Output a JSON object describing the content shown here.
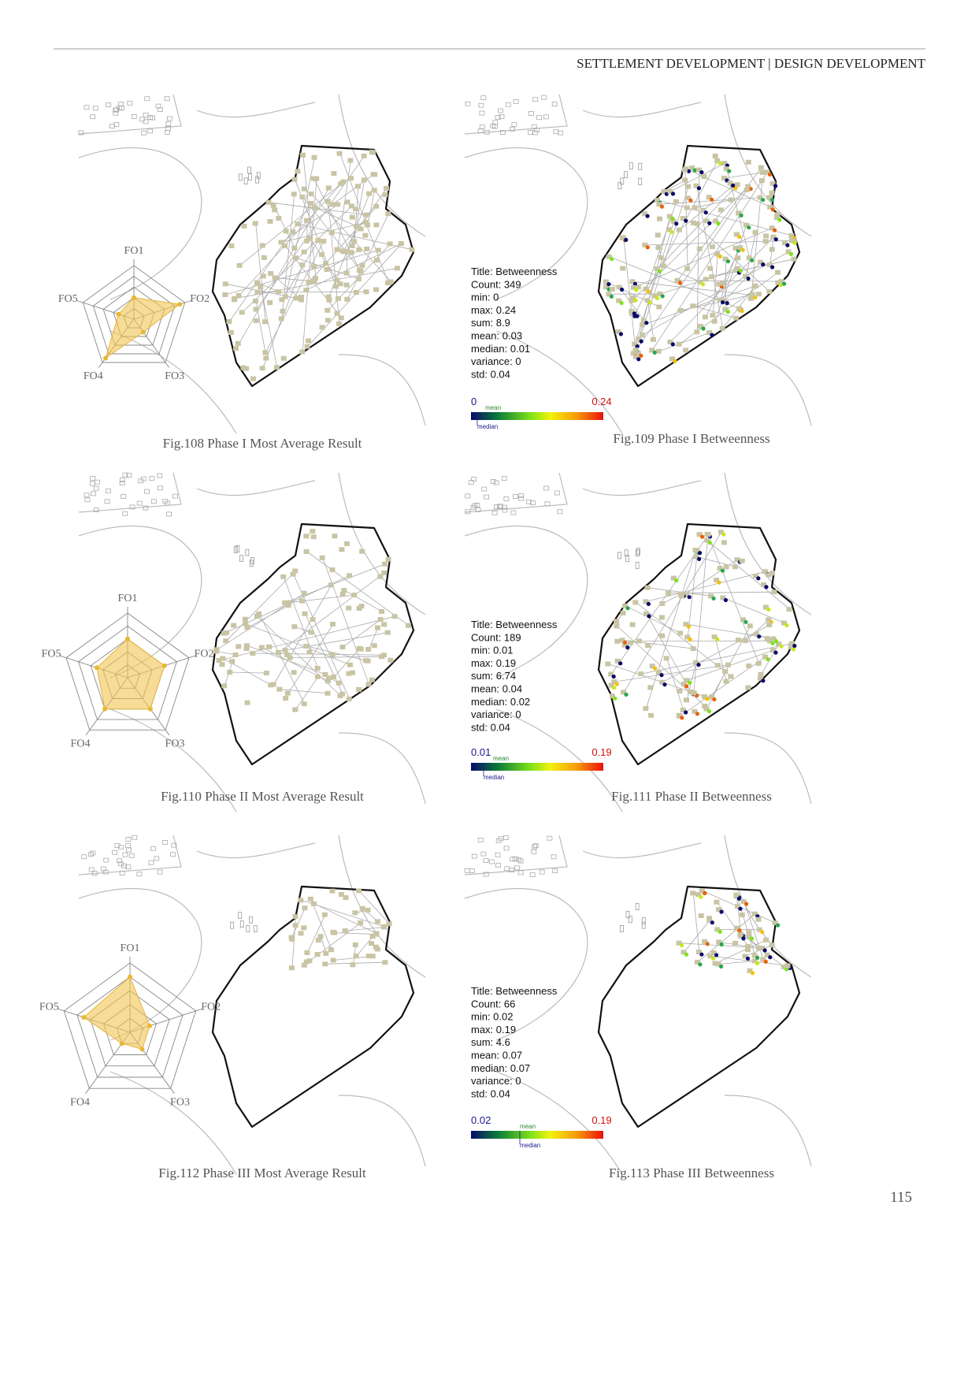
{
  "header": "SETTLEMENT DEVELOPMENT | DESIGN DEVELOPMENT",
  "page_number": "115",
  "radar_panels": [
    {
      "caption": "Fig.108  Phase I  Most Average Result",
      "axes": [
        "FO1",
        "FO2",
        "FO3",
        "FO4",
        "FO5"
      ],
      "values": [
        2,
        4.5,
        1.5,
        4.5,
        1.5
      ],
      "rlim": [
        0,
        5
      ]
    },
    {
      "caption": "Fig.110  Phase II  Most Average Result",
      "axes": [
        "FO1",
        "FO2",
        "FO3",
        "FO4",
        "FO5"
      ],
      "values": [
        3,
        3,
        3,
        3,
        2.5
      ],
      "rlim": [
        0,
        5
      ]
    },
    {
      "caption": "Fig.112  Phase III  Most Average Result",
      "axes": [
        "FO1",
        "FO2",
        "FO3",
        "FO4",
        "FO5"
      ],
      "values": [
        4,
        1.5,
        1.5,
        1,
        3.5
      ],
      "rlim": [
        0,
        5
      ]
    }
  ],
  "betweenness_panels": [
    {
      "caption": "Fig.109  Phase I  Betweenness",
      "stats": [
        "Title: Betweenness",
        "Count: 349",
        "min: 0",
        "max: 0.24",
        "sum: 8.9",
        "mean: 0.03",
        "median: 0.01",
        "variance: 0",
        "std: 0.04"
      ],
      "legend_min": "0",
      "legend_max": "0.24",
      "mean_label": "mean",
      "median_label": "median"
    },
    {
      "caption": "Fig.111  Phase II  Betweenness",
      "stats": [
        "Title: Betweenness",
        "Count: 189",
        "min: 0.01",
        "max: 0.19",
        "sum: 6.74",
        "mean: 0.04",
        "median: 0.02",
        "variance: 0",
        "std: 0.04"
      ],
      "legend_min": "0.01",
      "legend_max": "0.19",
      "mean_label": "mean",
      "median_label": "median"
    },
    {
      "caption": "Fig.113  Phase III Betweenness",
      "stats": [
        "Title: Betweenness",
        "Count: 66",
        "min: 0.02",
        "max: 0.19",
        "sum: 4.6",
        "mean: 0.07",
        "median: 0.07",
        "variance: 0",
        "std: 0.04"
      ],
      "legend_min": "0.02",
      "legend_max": "0.19",
      "mean_label": "mean",
      "median_label": "median"
    }
  ]
}
